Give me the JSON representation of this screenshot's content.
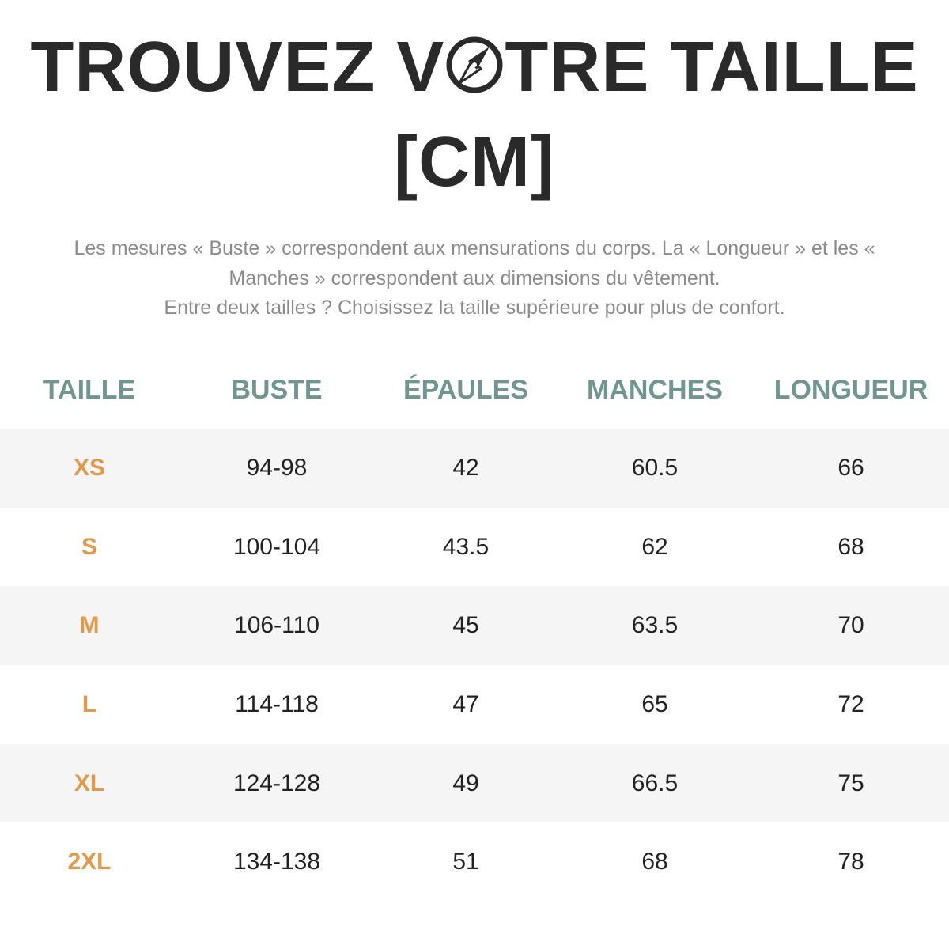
{
  "header": {
    "title_before_icon": "TROUVEZ V",
    "title_after_icon": "TRE TAILLE",
    "title_line2": "[CM]",
    "icon": "compass-icon"
  },
  "note": {
    "line1": "Les mesures « Buste » correspondent aux mensurations du corps. La « Longueur » et les «",
    "line2": "Manches » correspondent aux dimensions du vêtement.",
    "line3": "Entre deux tailles ? Choisissez la taille supérieure pour plus de confort."
  },
  "table": {
    "headers": [
      "TAILLE",
      "BUSTE",
      "ÉPAULES",
      "MANCHES",
      "LONGUEUR"
    ],
    "rows": [
      [
        "XS",
        "94-98",
        "42",
        "60.5",
        "66"
      ],
      [
        "S",
        "100-104",
        "43.5",
        "62",
        "68"
      ],
      [
        "M",
        "106-110",
        "45",
        "63.5",
        "70"
      ],
      [
        "L",
        "114-118",
        "47",
        "65",
        "72"
      ],
      [
        "XL",
        "124-128",
        "49",
        "66.5",
        "75"
      ],
      [
        "2XL",
        "134-138",
        "51",
        "68",
        "78"
      ]
    ]
  },
  "colors": {
    "title": "#2a2a2a",
    "note": "#8b8b8b",
    "header": "#6f9790",
    "size_label": "#e09a48",
    "stripe": "#f5f5f5"
  }
}
